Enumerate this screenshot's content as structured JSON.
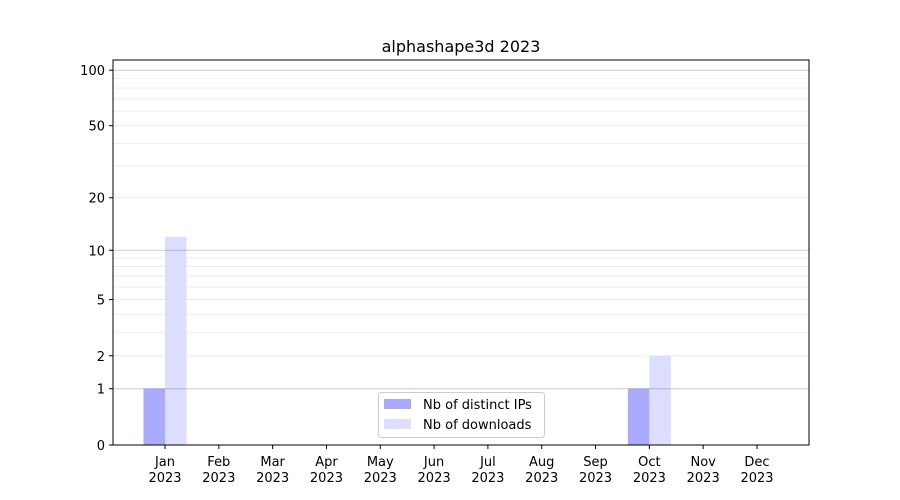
{
  "chart_data": {
    "type": "bar",
    "title": "alphashape3d 2023",
    "xlabel": "",
    "ylabel": "",
    "yscale": "log10(1+y)",
    "ylim": [
      0,
      113.5
    ],
    "grid": true,
    "legend_position": "lower-center",
    "categories": [
      "Jan\n2023",
      "Feb\n2023",
      "Mar\n2023",
      "Apr\n2023",
      "May\n2023",
      "Jun\n2023",
      "Jul\n2023",
      "Aug\n2023",
      "Sep\n2023",
      "Oct\n2023",
      "Nov\n2023",
      "Dec\n2023"
    ],
    "yticks": [
      0,
      1,
      2,
      5,
      10,
      20,
      50,
      100
    ],
    "ytick_labels": [
      "0",
      "1",
      "2",
      "5",
      "10",
      "20",
      "50",
      "100"
    ],
    "series": [
      {
        "name": "Nb of distinct IPs",
        "color": "#aaaaff",
        "values": [
          1,
          0,
          0,
          0,
          0,
          0,
          0,
          0,
          0,
          1,
          0,
          0
        ]
      },
      {
        "name": "Nb of downloads",
        "color": "#ddddff",
        "values": [
          12,
          0,
          0,
          0,
          0,
          0,
          0,
          0,
          0,
          2,
          0,
          0
        ]
      }
    ]
  }
}
